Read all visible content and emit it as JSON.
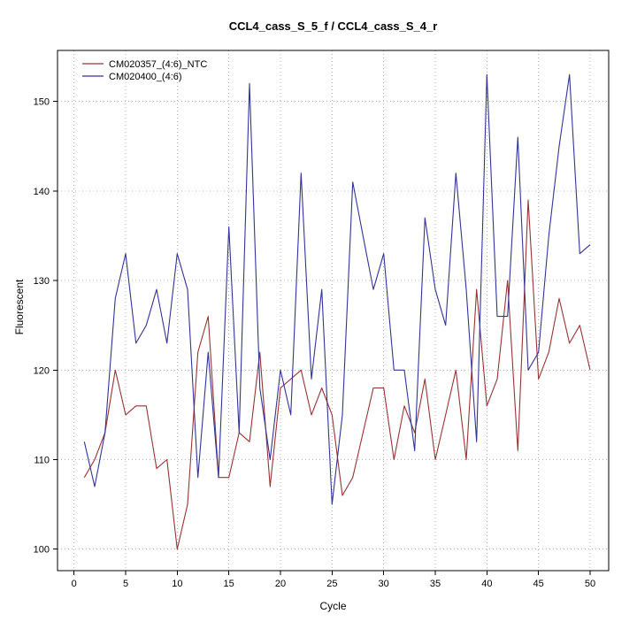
{
  "page": {
    "title": "CCL4_cass_S_5_f / CCL4_cass_S_4_r"
  },
  "chart_data": {
    "type": "line",
    "title": "CCL4_cass_S_5_f / CCL4_cass_S_4_r",
    "xlabel": "Cycle",
    "ylabel": "Fluorescent",
    "x_ticks": [
      0,
      5,
      10,
      15,
      20,
      25,
      30,
      35,
      40,
      45,
      50
    ],
    "y_ticks": [
      100,
      110,
      120,
      130,
      140,
      150
    ],
    "xlim": [
      -1.6,
      51.8
    ],
    "ylim": [
      97.6,
      155.7
    ],
    "grid": true,
    "grid_style": "dotted",
    "grid_color": "#b4b4b4",
    "legend_position": "top-left",
    "background": "#ffffff",
    "x": [
      1,
      2,
      3,
      4,
      5,
      6,
      7,
      8,
      9,
      10,
      11,
      12,
      13,
      14,
      15,
      16,
      17,
      18,
      19,
      20,
      21,
      22,
      23,
      24,
      25,
      26,
      27,
      28,
      29,
      30,
      31,
      32,
      33,
      34,
      35,
      36,
      37,
      38,
      39,
      40,
      41,
      42,
      43,
      44,
      45,
      46,
      47,
      48,
      49,
      50
    ],
    "series": [
      {
        "name": "CM020357_(4:6)_NTC",
        "color": "#993333",
        "values": [
          108,
          110,
          113,
          120,
          115,
          116,
          116,
          109,
          110,
          100,
          105,
          122,
          126,
          108,
          108,
          113,
          112,
          122,
          107,
          118,
          119,
          120,
          115,
          118,
          115,
          106,
          108,
          113,
          118,
          118,
          110,
          116,
          113,
          119,
          110,
          115,
          120,
          110,
          129,
          116,
          119,
          130,
          111,
          139,
          119,
          122,
          128,
          123,
          125,
          120
        ]
      },
      {
        "name": "CM020400_(4:6)",
        "color": "#333399",
        "values": [
          112,
          107,
          113,
          128,
          133,
          123,
          125,
          129,
          123,
          133,
          129,
          108,
          122,
          108,
          136,
          113,
          152,
          118,
          110,
          120,
          115,
          142,
          119,
          129,
          105,
          115,
          141,
          135,
          129,
          133,
          120,
          120,
          111,
          137,
          129,
          125,
          142,
          129,
          112,
          153,
          126,
          126,
          146,
          120,
          122,
          135,
          145,
          153,
          133,
          134
        ]
      }
    ]
  }
}
